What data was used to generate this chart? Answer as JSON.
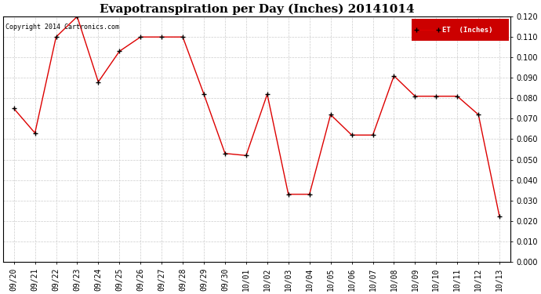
{
  "title": "Evapotranspiration per Day (Inches) 20141014",
  "copyright": "Copyright 2014 Cartronics.com",
  "legend_label": "ET  (Inches)",
  "labels": [
    "09/20",
    "09/21",
    "09/22",
    "09/23",
    "09/24",
    "09/25",
    "09/26",
    "09/27",
    "09/28",
    "09/29",
    "09/30",
    "10/01",
    "10/02",
    "10/03",
    "10/04",
    "10/05",
    "10/06",
    "10/07",
    "10/08",
    "10/09",
    "10/10",
    "10/11",
    "10/12",
    "10/13"
  ],
  "values": [
    0.075,
    0.063,
    0.11,
    0.12,
    0.088,
    0.103,
    0.11,
    0.11,
    0.11,
    0.082,
    0.053,
    0.052,
    0.082,
    0.033,
    0.033,
    0.072,
    0.062,
    0.062,
    0.091,
    0.081,
    0.081,
    0.081,
    0.072,
    0.022
  ],
  "line_color": "#dd0000",
  "marker_color": "#000000",
  "plot_bg_color": "#ffffff",
  "fig_bg_color": "#ffffff",
  "grid_color": "#cccccc",
  "ylim": [
    0.0,
    0.12
  ],
  "ytick_step": 0.01,
  "legend_bg": "#cc0000",
  "legend_text_color": "#ffffff",
  "title_fontsize": 11,
  "tick_fontsize": 7,
  "copyright_fontsize": 6
}
